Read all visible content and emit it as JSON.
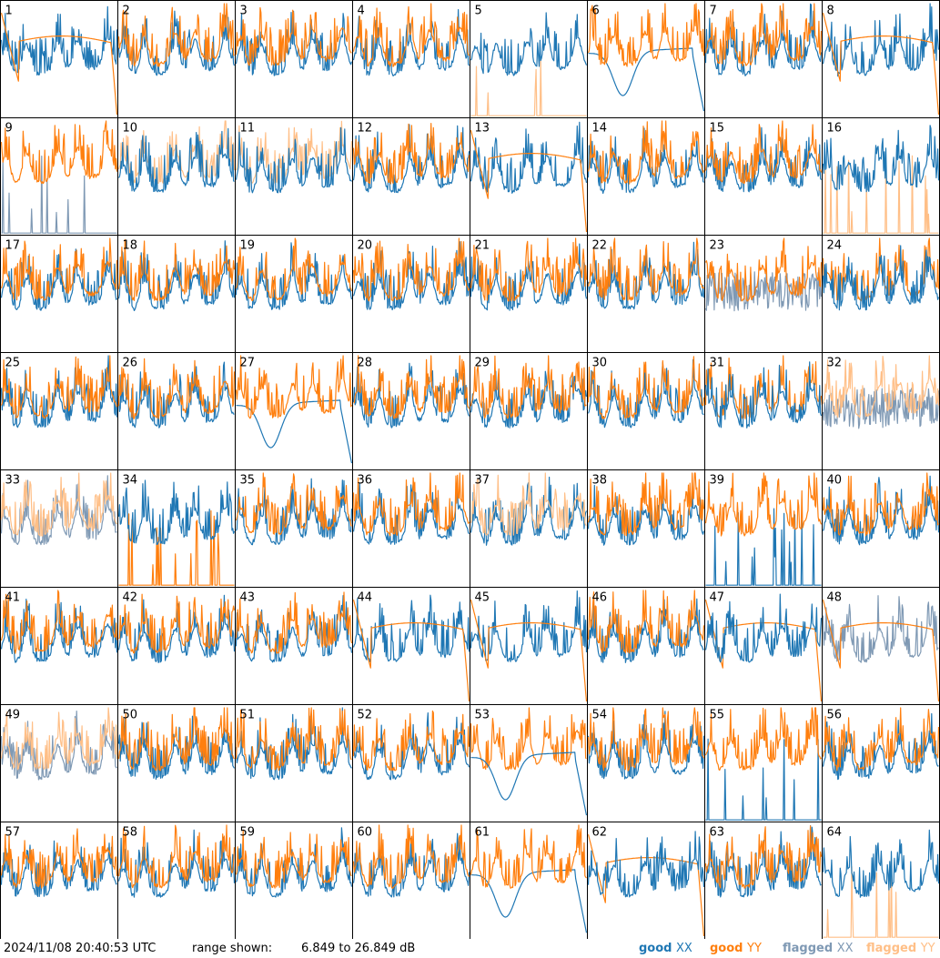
{
  "timestamp": "2024/11/08 20:40:53 UTC",
  "range_prefix": "range shown:",
  "range_text": "6.849 to 26.849 dB",
  "colors": {
    "good_xx": "#1f77b4",
    "good_yy": "#ff7f0e",
    "flagged_xx": "#7f99b4",
    "flagged_yy": "#ffbf87"
  },
  "legend": [
    {
      "word": "good",
      "pol": "XX",
      "color": "#1f77b4"
    },
    {
      "word": "good",
      "pol": "YY",
      "color": "#ff7f0e"
    },
    {
      "word": "flagged",
      "pol": "XX",
      "color": "#7f99b4"
    },
    {
      "word": "flagged",
      "pol": "YY",
      "color": "#ffbf87"
    }
  ],
  "chart_data": {
    "type": "line",
    "ylim": [
      6.849,
      26.849
    ],
    "units": "dB",
    "panels": [
      {
        "label": "1",
        "xx": "good",
        "yy": "good",
        "shape": "ramp",
        "dom": "yy"
      },
      {
        "label": "2",
        "xx": "good",
        "yy": "good",
        "shape": "normal",
        "dom": "yy"
      },
      {
        "label": "3",
        "xx": "good",
        "yy": "good",
        "shape": "normal",
        "dom": "yy"
      },
      {
        "label": "4",
        "xx": "good",
        "yy": "good",
        "shape": "normal",
        "dom": "yy"
      },
      {
        "label": "5",
        "xx": "good",
        "yy": "flagged",
        "shape": "spiky_low_yy",
        "dom": "xx"
      },
      {
        "label": "6",
        "xx": "good",
        "yy": "good",
        "shape": "dip",
        "dom": "yy"
      },
      {
        "label": "7",
        "xx": "good",
        "yy": "good",
        "shape": "normal",
        "dom": "yy"
      },
      {
        "label": "8",
        "xx": "good",
        "yy": "good",
        "shape": "ramp",
        "dom": "yy"
      },
      {
        "label": "9",
        "xx": "flagged",
        "yy": "good",
        "shape": "spiky_low_xx",
        "dom": "yy"
      },
      {
        "label": "10",
        "xx": "good",
        "yy": "flagged",
        "shape": "normal",
        "dom": "xx"
      },
      {
        "label": "11",
        "xx": "good",
        "yy": "flagged",
        "shape": "normal",
        "dom": "xx"
      },
      {
        "label": "12",
        "xx": "good",
        "yy": "good",
        "shape": "normal",
        "dom": "yy"
      },
      {
        "label": "13",
        "xx": "good",
        "yy": "good",
        "shape": "ramp",
        "dom": "yy"
      },
      {
        "label": "14",
        "xx": "good",
        "yy": "good",
        "shape": "normal",
        "dom": "yy"
      },
      {
        "label": "15",
        "xx": "good",
        "yy": "good",
        "shape": "normal",
        "dom": "yy"
      },
      {
        "label": "16",
        "xx": "good",
        "yy": "flagged",
        "shape": "spiky_low_yy",
        "dom": "xx"
      },
      {
        "label": "17",
        "xx": "good",
        "yy": "good",
        "shape": "normal",
        "dom": "yy"
      },
      {
        "label": "18",
        "xx": "good",
        "yy": "good",
        "shape": "normal",
        "dom": "yy"
      },
      {
        "label": "19",
        "xx": "good",
        "yy": "good",
        "shape": "normal",
        "dom": "yy"
      },
      {
        "label": "20",
        "xx": "good",
        "yy": "good",
        "shape": "normal",
        "dom": "yy"
      },
      {
        "label": "21",
        "xx": "good",
        "yy": "good",
        "shape": "normal",
        "dom": "yy"
      },
      {
        "label": "22",
        "xx": "good",
        "yy": "good",
        "shape": "normal",
        "dom": "yy"
      },
      {
        "label": "23",
        "xx": "flagged",
        "yy": "good",
        "shape": "flag_noise",
        "dom": "yy"
      },
      {
        "label": "24",
        "xx": "good",
        "yy": "good",
        "shape": "normal",
        "dom": "xx"
      },
      {
        "label": "25",
        "xx": "good",
        "yy": "good",
        "shape": "normal",
        "dom": "yy"
      },
      {
        "label": "26",
        "xx": "good",
        "yy": "good",
        "shape": "normal",
        "dom": "yy"
      },
      {
        "label": "27",
        "xx": "good",
        "yy": "good",
        "shape": "dip",
        "dom": "yy"
      },
      {
        "label": "28",
        "xx": "good",
        "yy": "good",
        "shape": "normal",
        "dom": "yy"
      },
      {
        "label": "29",
        "xx": "good",
        "yy": "good",
        "shape": "normal",
        "dom": "yy"
      },
      {
        "label": "30",
        "xx": "good",
        "yy": "good",
        "shape": "normal",
        "dom": "yy"
      },
      {
        "label": "31",
        "xx": "good",
        "yy": "good",
        "shape": "normal",
        "dom": "xx"
      },
      {
        "label": "32",
        "xx": "flagged",
        "yy": "flagged",
        "shape": "flag_noise",
        "dom": "yy"
      },
      {
        "label": "33",
        "xx": "flagged",
        "yy": "flagged",
        "shape": "normal",
        "dom": "yy"
      },
      {
        "label": "34",
        "xx": "good",
        "yy": "good",
        "shape": "spiky_low_yy",
        "dom": "xx"
      },
      {
        "label": "35",
        "xx": "good",
        "yy": "good",
        "shape": "normal",
        "dom": "yy"
      },
      {
        "label": "36",
        "xx": "good",
        "yy": "good",
        "shape": "normal",
        "dom": "yy"
      },
      {
        "label": "37",
        "xx": "good",
        "yy": "flagged",
        "shape": "normal",
        "dom": "yy"
      },
      {
        "label": "38",
        "xx": "good",
        "yy": "good",
        "shape": "normal",
        "dom": "yy"
      },
      {
        "label": "39",
        "xx": "good",
        "yy": "good",
        "shape": "spiky_low_xx",
        "dom": "yy"
      },
      {
        "label": "40",
        "xx": "good",
        "yy": "good",
        "shape": "normal",
        "dom": "yy"
      },
      {
        "label": "41",
        "xx": "good",
        "yy": "good",
        "shape": "normal",
        "dom": "yy"
      },
      {
        "label": "42",
        "xx": "good",
        "yy": "good",
        "shape": "normal",
        "dom": "yy"
      },
      {
        "label": "43",
        "xx": "good",
        "yy": "good",
        "shape": "normal",
        "dom": "yy"
      },
      {
        "label": "44",
        "xx": "good",
        "yy": "good",
        "shape": "ramp",
        "dom": "yy"
      },
      {
        "label": "45",
        "xx": "good",
        "yy": "good",
        "shape": "ramp",
        "dom": "yy"
      },
      {
        "label": "46",
        "xx": "good",
        "yy": "good",
        "shape": "normal",
        "dom": "yy"
      },
      {
        "label": "47",
        "xx": "good",
        "yy": "good",
        "shape": "ramp",
        "dom": "xx"
      },
      {
        "label": "48",
        "xx": "flagged",
        "yy": "good",
        "shape": "ramp",
        "dom": "yy"
      },
      {
        "label": "49",
        "xx": "flagged",
        "yy": "flagged",
        "shape": "normal",
        "dom": "yy"
      },
      {
        "label": "50",
        "xx": "good",
        "yy": "good",
        "shape": "normal",
        "dom": "yy"
      },
      {
        "label": "51",
        "xx": "good",
        "yy": "good",
        "shape": "normal",
        "dom": "yy"
      },
      {
        "label": "52",
        "xx": "good",
        "yy": "good",
        "shape": "normal",
        "dom": "yy"
      },
      {
        "label": "53",
        "xx": "good",
        "yy": "good",
        "shape": "dip",
        "dom": "xx"
      },
      {
        "label": "54",
        "xx": "good",
        "yy": "good",
        "shape": "normal",
        "dom": "yy"
      },
      {
        "label": "55",
        "xx": "good",
        "yy": "good",
        "shape": "spiky_low_xx",
        "dom": "yy"
      },
      {
        "label": "56",
        "xx": "good",
        "yy": "good",
        "shape": "normal",
        "dom": "yy"
      },
      {
        "label": "57",
        "xx": "good",
        "yy": "good",
        "shape": "normal",
        "dom": "yy"
      },
      {
        "label": "58",
        "xx": "good",
        "yy": "good",
        "shape": "normal",
        "dom": "yy"
      },
      {
        "label": "59",
        "xx": "good",
        "yy": "good",
        "shape": "normal",
        "dom": "yy"
      },
      {
        "label": "60",
        "xx": "good",
        "yy": "good",
        "shape": "normal",
        "dom": "yy"
      },
      {
        "label": "61",
        "xx": "good",
        "yy": "good",
        "shape": "dip",
        "dom": "yy"
      },
      {
        "label": "62",
        "xx": "good",
        "yy": "good",
        "shape": "ramp",
        "dom": "xx"
      },
      {
        "label": "63",
        "xx": "good",
        "yy": "good",
        "shape": "normal",
        "dom": "yy"
      },
      {
        "label": "64",
        "xx": "good",
        "yy": "flagged",
        "shape": "spiky_low_yy",
        "dom": "xx"
      }
    ]
  }
}
